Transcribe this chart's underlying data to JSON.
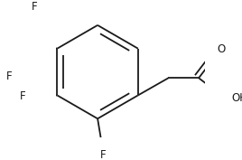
{
  "background_color": "#ffffff",
  "line_color": "#1a1a1a",
  "line_width": 1.3,
  "font_size": 8.5,
  "font_family": "DejaVu Sans",
  "label_color": "#1a1a1a",
  "figsize": [
    2.68,
    1.77
  ],
  "dpi": 100,
  "xlim": [
    -1.0,
    2.2
  ],
  "ylim": [
    -1.4,
    1.5
  ]
}
